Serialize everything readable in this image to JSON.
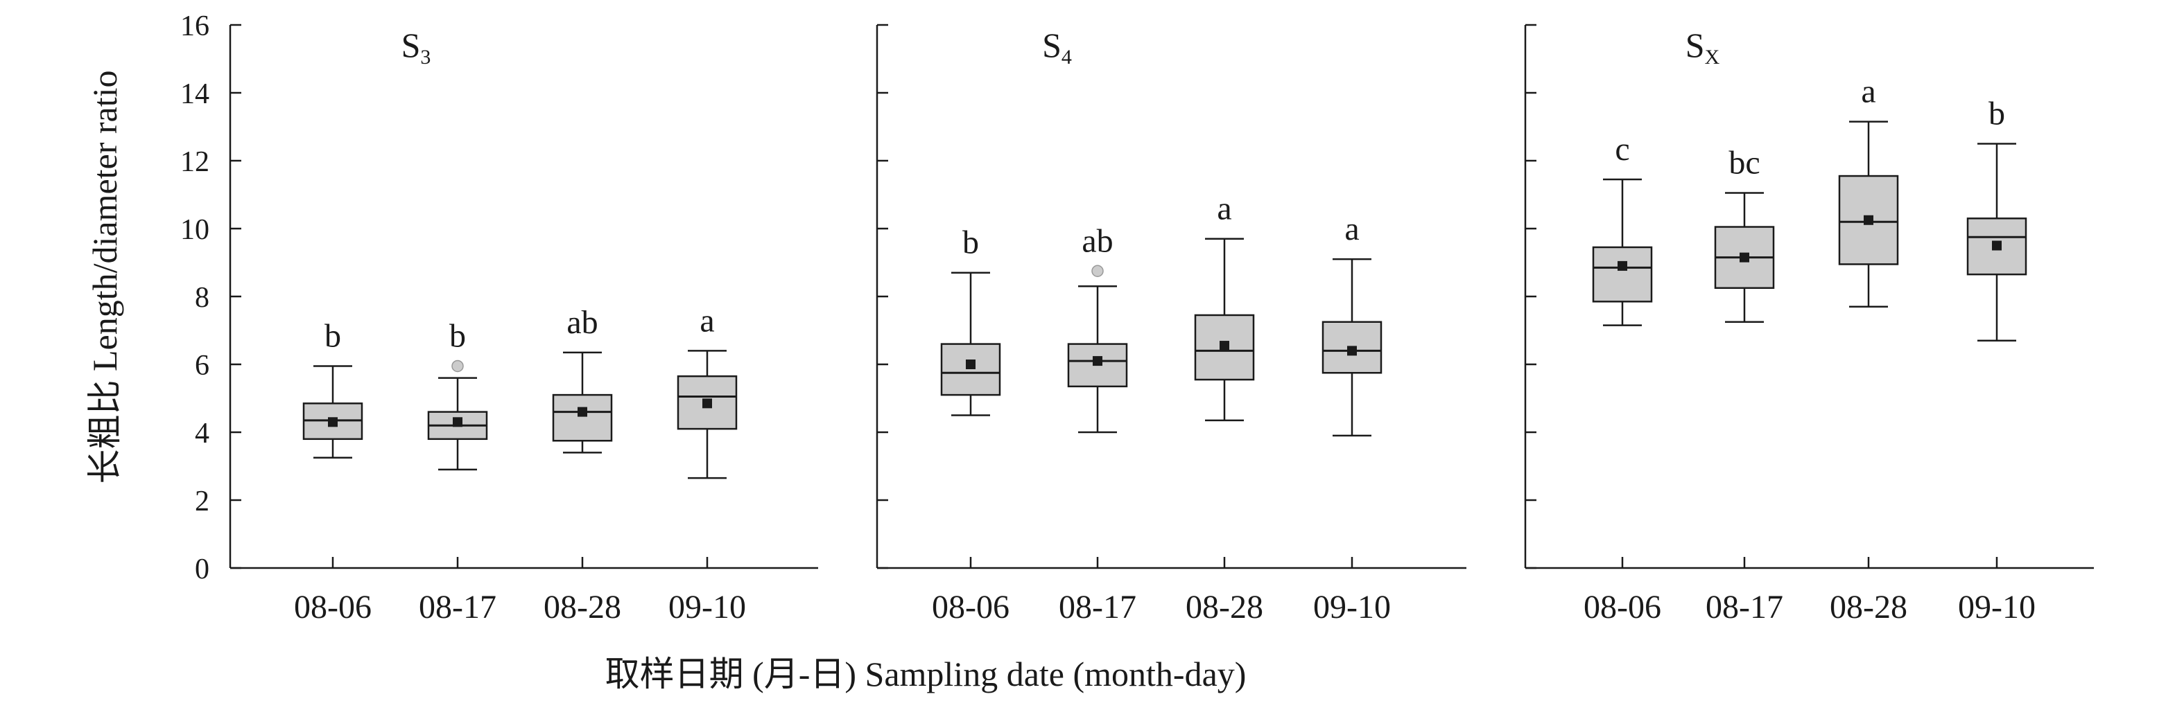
{
  "chart_data": {
    "type": "box",
    "ylabel": "长粗比 Length/diameter ratio",
    "xlabel": "取样日期 (月-日) Sampling date (month-day)",
    "ylim": [
      0,
      16
    ],
    "yticks": [
      0,
      2,
      4,
      6,
      8,
      10,
      12,
      14,
      16
    ],
    "categories": [
      "08-06",
      "08-17",
      "08-28",
      "09-10"
    ],
    "colors": {
      "box_fill": "#cccccc",
      "stroke": "#1a1a1a",
      "outlier": "#cccccc",
      "mean": "#1a1a1a"
    },
    "panels": [
      {
        "title": "S",
        "subscript": "3",
        "boxes": [
          {
            "category": "08-06",
            "min": 3.25,
            "q1": 3.8,
            "median": 4.35,
            "q3": 4.85,
            "max": 5.95,
            "mean": 4.3,
            "letter": "b",
            "outliers": []
          },
          {
            "category": "08-17",
            "min": 2.9,
            "q1": 3.8,
            "median": 4.2,
            "q3": 4.6,
            "max": 5.6,
            "mean": 4.3,
            "letter": "b",
            "outliers": [
              5.95
            ]
          },
          {
            "category": "08-28",
            "min": 3.4,
            "q1": 3.75,
            "median": 4.6,
            "q3": 5.1,
            "max": 6.35,
            "mean": 4.6,
            "letter": "ab",
            "outliers": []
          },
          {
            "category": "09-10",
            "min": 2.65,
            "q1": 4.1,
            "median": 5.05,
            "q3": 5.65,
            "max": 6.4,
            "mean": 4.85,
            "letter": "a",
            "outliers": []
          }
        ]
      },
      {
        "title": "S",
        "subscript": "4",
        "boxes": [
          {
            "category": "08-06",
            "min": 4.5,
            "q1": 5.1,
            "median": 5.75,
            "q3": 6.6,
            "max": 8.7,
            "mean": 6.0,
            "letter": "b",
            "outliers": []
          },
          {
            "category": "08-17",
            "min": 4.0,
            "q1": 5.35,
            "median": 6.1,
            "q3": 6.6,
            "max": 8.3,
            "mean": 6.1,
            "letter": "ab",
            "outliers": [
              8.75
            ]
          },
          {
            "category": "08-28",
            "min": 4.35,
            "q1": 5.55,
            "median": 6.4,
            "q3": 7.45,
            "max": 9.7,
            "mean": 6.55,
            "letter": "a",
            "outliers": []
          },
          {
            "category": "09-10",
            "min": 3.9,
            "q1": 5.75,
            "median": 6.4,
            "q3": 7.25,
            "max": 9.1,
            "mean": 6.4,
            "letter": "a",
            "outliers": []
          }
        ]
      },
      {
        "title": "S",
        "subscript": "X",
        "boxes": [
          {
            "category": "08-06",
            "min": 7.15,
            "q1": 7.85,
            "median": 8.85,
            "q3": 9.45,
            "max": 11.45,
            "mean": 8.9,
            "letter": "c",
            "outliers": []
          },
          {
            "category": "08-17",
            "min": 7.25,
            "q1": 8.25,
            "median": 9.15,
            "q3": 10.05,
            "max": 11.05,
            "mean": 9.15,
            "letter": "bc",
            "outliers": []
          },
          {
            "category": "08-28",
            "min": 7.7,
            "q1": 8.95,
            "median": 10.2,
            "q3": 11.55,
            "max": 13.15,
            "mean": 10.25,
            "letter": "a",
            "outliers": []
          },
          {
            "category": "09-10",
            "min": 6.7,
            "q1": 8.65,
            "median": 9.75,
            "q3": 10.3,
            "max": 12.5,
            "mean": 9.5,
            "letter": "b",
            "outliers": []
          }
        ]
      }
    ]
  }
}
